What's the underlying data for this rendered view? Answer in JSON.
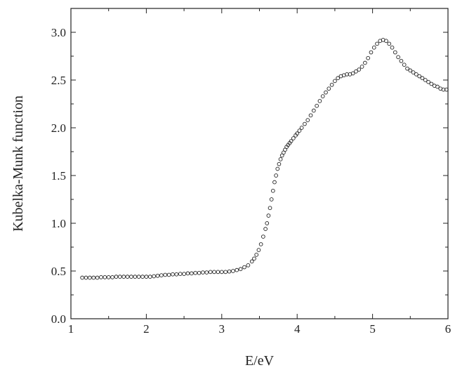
{
  "chart_data": {
    "type": "scatter",
    "title": "",
    "xlabel": "E/eV",
    "ylabel": "Kubelka-Munk function",
    "xlim": [
      1,
      6
    ],
    "ylim": [
      0.0,
      3.25
    ],
    "grid": false,
    "legend": "none",
    "marker": "open-circle",
    "marker_color": "#222222",
    "x_ticks": [
      1,
      2,
      3,
      4,
      5,
      6
    ],
    "x_tick_labels": [
      "1",
      "2",
      "3",
      "4",
      "5",
      "6"
    ],
    "y_ticks": [
      0.0,
      0.5,
      1.0,
      1.5,
      2.0,
      2.5,
      3.0
    ],
    "y_tick_labels": [
      "0.0",
      "0.5",
      "1.0",
      "1.5",
      "2.0",
      "2.5",
      "3.0"
    ],
    "series": [
      {
        "x": [
          1.15,
          1.2,
          1.25,
          1.3,
          1.35,
          1.4,
          1.45,
          1.5,
          1.55,
          1.6,
          1.65,
          1.7,
          1.75,
          1.8,
          1.85,
          1.9,
          1.95,
          2.0,
          2.05,
          2.1,
          2.15,
          2.2,
          2.25,
          2.3,
          2.35,
          2.4,
          2.45,
          2.5,
          2.55,
          2.6,
          2.65,
          2.7,
          2.75,
          2.8,
          2.85,
          2.9,
          2.95,
          3.0,
          3.05,
          3.1,
          3.15,
          3.2,
          3.25,
          3.3,
          3.35,
          3.4,
          3.43,
          3.46,
          3.49,
          3.52,
          3.55,
          3.58,
          3.6,
          3.62,
          3.64,
          3.66,
          3.68,
          3.7,
          3.72,
          3.74,
          3.76,
          3.78,
          3.8,
          3.82,
          3.84,
          3.86,
          3.88,
          3.9,
          3.92,
          3.95,
          3.98,
          4.0,
          4.03,
          4.06,
          4.1,
          4.14,
          4.18,
          4.22,
          4.26,
          4.3,
          4.34,
          4.38,
          4.42,
          4.46,
          4.5,
          4.54,
          4.58,
          4.62,
          4.66,
          4.7,
          4.74,
          4.78,
          4.82,
          4.86,
          4.9,
          4.94,
          4.98,
          5.02,
          5.06,
          5.1,
          5.14,
          5.18,
          5.22,
          5.26,
          5.3,
          5.34,
          5.38,
          5.42,
          5.46,
          5.5,
          5.54,
          5.58,
          5.62,
          5.66,
          5.7,
          5.74,
          5.78,
          5.82,
          5.86,
          5.9,
          5.94,
          5.98
        ],
        "y": [
          0.43,
          0.43,
          0.43,
          0.43,
          0.43,
          0.435,
          0.435,
          0.435,
          0.435,
          0.44,
          0.44,
          0.44,
          0.44,
          0.44,
          0.44,
          0.44,
          0.44,
          0.44,
          0.44,
          0.445,
          0.45,
          0.455,
          0.46,
          0.46,
          0.465,
          0.465,
          0.47,
          0.47,
          0.475,
          0.475,
          0.48,
          0.48,
          0.485,
          0.485,
          0.49,
          0.49,
          0.49,
          0.49,
          0.49,
          0.495,
          0.5,
          0.51,
          0.52,
          0.54,
          0.56,
          0.6,
          0.63,
          0.67,
          0.72,
          0.78,
          0.86,
          0.94,
          1.0,
          1.08,
          1.16,
          1.25,
          1.34,
          1.43,
          1.5,
          1.57,
          1.62,
          1.67,
          1.71,
          1.74,
          1.77,
          1.8,
          1.82,
          1.84,
          1.86,
          1.89,
          1.92,
          1.94,
          1.97,
          2.0,
          2.04,
          2.08,
          2.13,
          2.18,
          2.23,
          2.28,
          2.33,
          2.37,
          2.41,
          2.45,
          2.49,
          2.52,
          2.54,
          2.55,
          2.56,
          2.56,
          2.57,
          2.59,
          2.61,
          2.64,
          2.68,
          2.73,
          2.79,
          2.84,
          2.88,
          2.91,
          2.92,
          2.91,
          2.88,
          2.84,
          2.79,
          2.74,
          2.7,
          2.66,
          2.62,
          2.6,
          2.58,
          2.56,
          2.54,
          2.52,
          2.5,
          2.48,
          2.46,
          2.44,
          2.43,
          2.41,
          2.4,
          2.4
        ]
      }
    ]
  }
}
